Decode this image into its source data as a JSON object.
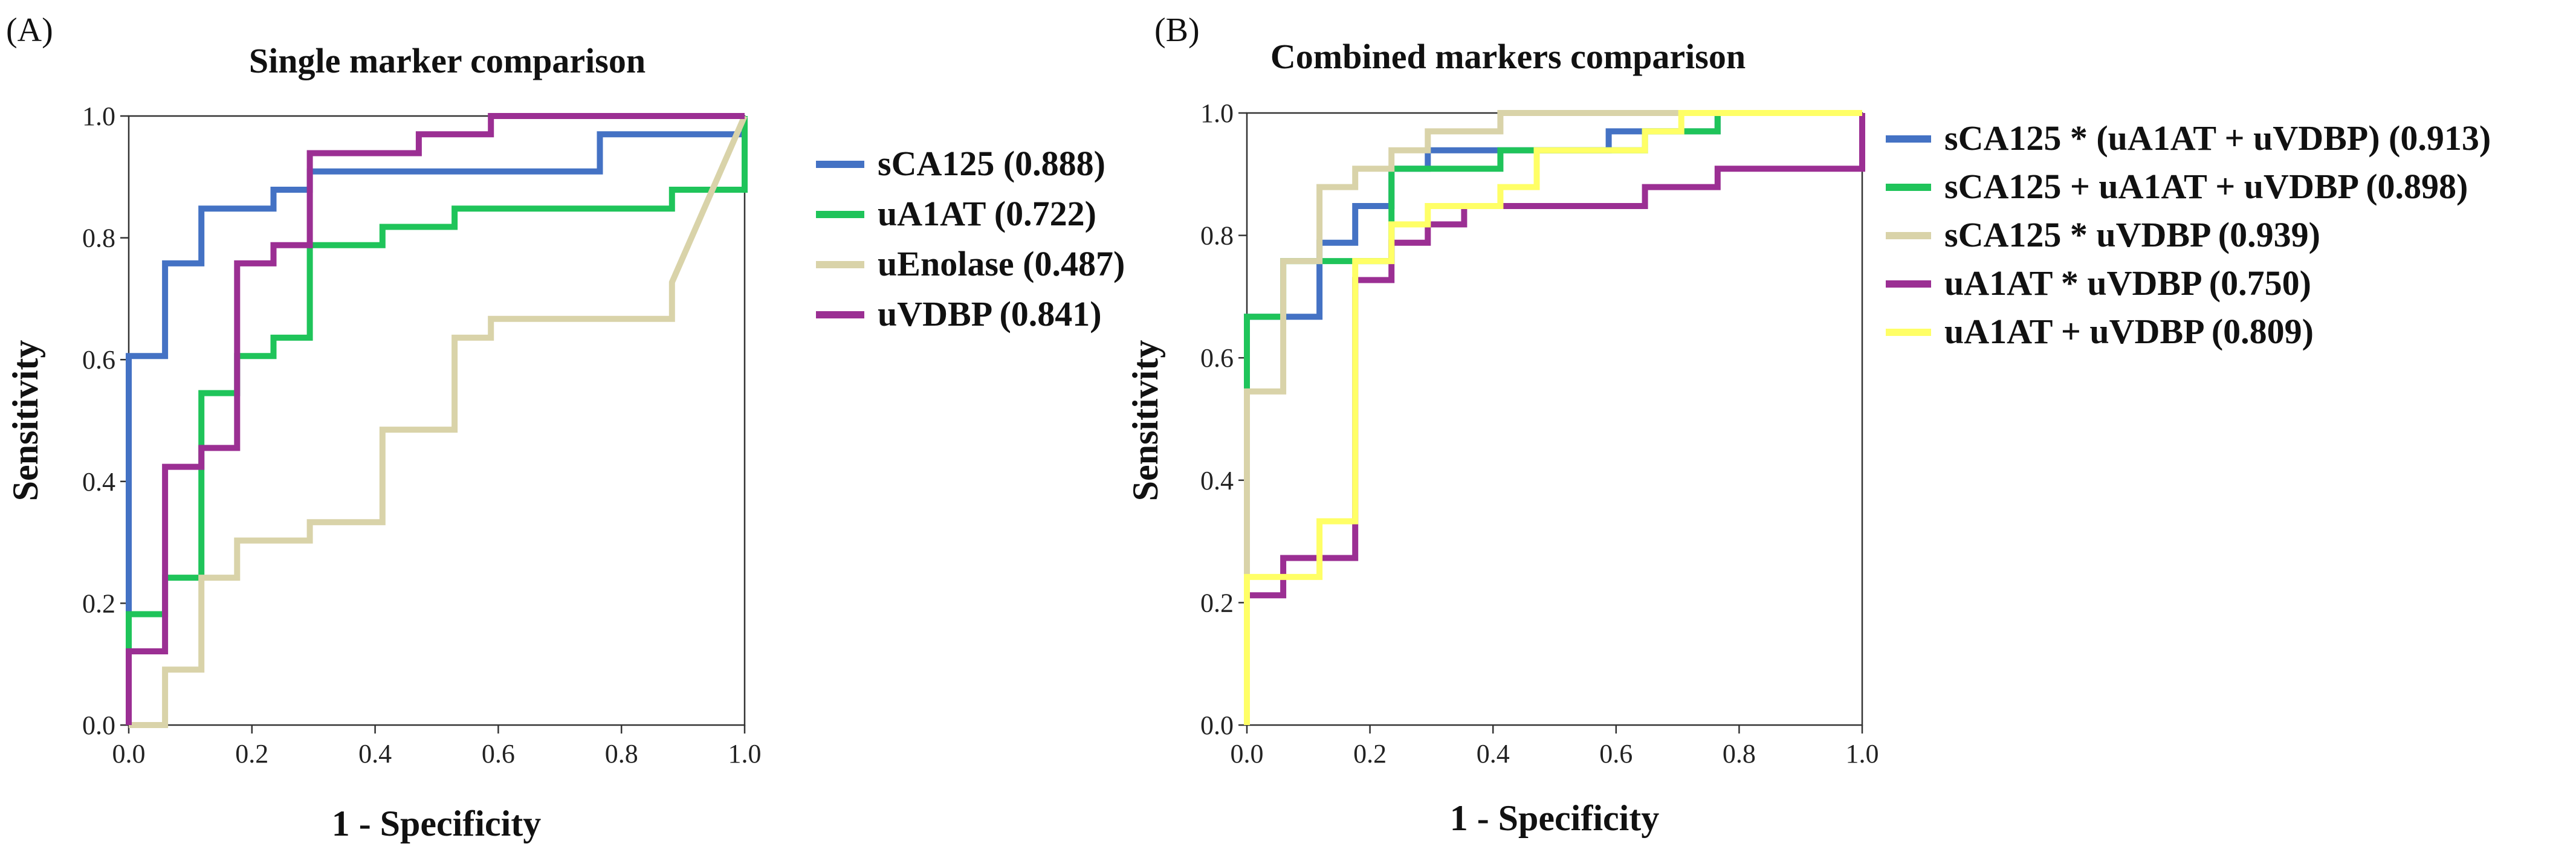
{
  "chart_data": [
    {
      "type": "line",
      "panel_label": "(A)",
      "title": "Single marker comparison",
      "xlabel": "1 - Specificity",
      "ylabel": "Sensitivity",
      "xlim": [
        0,
        1
      ],
      "ylim": [
        0,
        1
      ],
      "x_ticks": [
        "0.0",
        "0.2",
        "0.4",
        "0.6",
        "0.8",
        "1.0"
      ],
      "y_ticks": [
        "0.0",
        "0.2",
        "0.4",
        "0.6",
        "0.8",
        "1.0"
      ],
      "legend_position": "right",
      "series": [
        {
          "name": "sCA125",
          "auc": "0.888",
          "label": "sCA125 (0.888)",
          "color": "#4472c4",
          "points": [
            [
              0,
              0
            ],
            [
              0,
              0.606
            ],
            [
              0.059,
              0.606
            ],
            [
              0.059,
              0.758
            ],
            [
              0.118,
              0.758
            ],
            [
              0.118,
              0.848
            ],
            [
              0.235,
              0.848
            ],
            [
              0.235,
              0.879
            ],
            [
              0.294,
              0.879
            ],
            [
              0.294,
              0.909
            ],
            [
              0.765,
              0.909
            ],
            [
              0.765,
              0.97
            ],
            [
              1,
              0.97
            ],
            [
              1,
              1
            ]
          ]
        },
        {
          "name": "uA1AT",
          "auc": "0.722",
          "label": "uA1AT (0.722)",
          "color": "#1fc45a",
          "points": [
            [
              0,
              0
            ],
            [
              0,
              0.182
            ],
            [
              0.059,
              0.182
            ],
            [
              0.059,
              0.242
            ],
            [
              0.118,
              0.242
            ],
            [
              0.118,
              0.545
            ],
            [
              0.176,
              0.545
            ],
            [
              0.176,
              0.606
            ],
            [
              0.235,
              0.606
            ],
            [
              0.235,
              0.636
            ],
            [
              0.294,
              0.636
            ],
            [
              0.294,
              0.788
            ],
            [
              0.412,
              0.788
            ],
            [
              0.412,
              0.818
            ],
            [
              0.529,
              0.818
            ],
            [
              0.529,
              0.848
            ],
            [
              0.882,
              0.848
            ],
            [
              0.882,
              0.879
            ],
            [
              1,
              0.879
            ],
            [
              1,
              1
            ]
          ]
        },
        {
          "name": "uEnolase",
          "auc": "0.487",
          "label": "uEnolase (0.487)",
          "color": "#d9d3a9",
          "points": [
            [
              0,
              0
            ],
            [
              0.059,
              0
            ],
            [
              0.059,
              0.091
            ],
            [
              0.118,
              0.091
            ],
            [
              0.118,
              0.242
            ],
            [
              0.176,
              0.242
            ],
            [
              0.176,
              0.303
            ],
            [
              0.294,
              0.303
            ],
            [
              0.294,
              0.333
            ],
            [
              0.412,
              0.333
            ],
            [
              0.412,
              0.485
            ],
            [
              0.529,
              0.485
            ],
            [
              0.529,
              0.636
            ],
            [
              0.588,
              0.636
            ],
            [
              0.588,
              0.667
            ],
            [
              0.882,
              0.667
            ],
            [
              0.882,
              0.727
            ],
            [
              1,
              1
            ]
          ]
        },
        {
          "name": "uVDBP",
          "auc": "0.841",
          "label": "uVDBP (0.841)",
          "color": "#9b2f93",
          "points": [
            [
              0,
              0
            ],
            [
              0,
              0.121
            ],
            [
              0.059,
              0.121
            ],
            [
              0.059,
              0.424
            ],
            [
              0.118,
              0.424
            ],
            [
              0.118,
              0.455
            ],
            [
              0.176,
              0.455
            ],
            [
              0.176,
              0.758
            ],
            [
              0.235,
              0.758
            ],
            [
              0.235,
              0.788
            ],
            [
              0.294,
              0.788
            ],
            [
              0.294,
              0.939
            ],
            [
              0.471,
              0.939
            ],
            [
              0.471,
              0.97
            ],
            [
              0.588,
              0.97
            ],
            [
              0.588,
              1
            ],
            [
              1,
              1
            ]
          ]
        }
      ]
    },
    {
      "type": "line",
      "panel_label": "(B)",
      "title": "Combined markers comparison",
      "xlabel": "1 - Specificity",
      "ylabel": "Sensitivity",
      "xlim": [
        0,
        1
      ],
      "ylim": [
        0,
        1
      ],
      "x_ticks": [
        "0.0",
        "0.2",
        "0.4",
        "0.6",
        "0.8",
        "1.0"
      ],
      "y_ticks": [
        "0.0",
        "0.2",
        "0.4",
        "0.6",
        "0.8",
        "1.0"
      ],
      "legend_position": "right",
      "series": [
        {
          "name": "sCA125 * (uA1AT + uVDBP)",
          "auc": "0.913",
          "label": "sCA125 * (uA1AT + uVDBP) (0.913)",
          "color": "#4472c4",
          "points": [
            [
              0,
              0
            ],
            [
              0,
              0.667
            ],
            [
              0.118,
              0.667
            ],
            [
              0.118,
              0.788
            ],
            [
              0.176,
              0.788
            ],
            [
              0.176,
              0.848
            ],
            [
              0.235,
              0.848
            ],
            [
              0.235,
              0.909
            ],
            [
              0.294,
              0.909
            ],
            [
              0.294,
              0.939
            ],
            [
              0.588,
              0.939
            ],
            [
              0.588,
              0.97
            ],
            [
              0.765,
              0.97
            ],
            [
              0.765,
              1
            ],
            [
              1,
              1
            ]
          ]
        },
        {
          "name": "sCA125 + uA1AT + uVDBP",
          "auc": "0.898",
          "label": "sCA125 + uA1AT + uVDBP (0.898)",
          "color": "#1fc45a",
          "points": [
            [
              0,
              0
            ],
            [
              0,
              0.667
            ],
            [
              0.059,
              0.667
            ],
            [
              0.059,
              0.758
            ],
            [
              0.235,
              0.758
            ],
            [
              0.235,
              0.909
            ],
            [
              0.412,
              0.909
            ],
            [
              0.412,
              0.939
            ],
            [
              0.647,
              0.939
            ],
            [
              0.647,
              0.97
            ],
            [
              0.765,
              0.97
            ],
            [
              0.765,
              1
            ],
            [
              1,
              1
            ]
          ]
        },
        {
          "name": "sCA125 * uVDBP",
          "auc": "0.939",
          "label": "sCA125 * uVDBP (0.939)",
          "color": "#d9d3a9",
          "points": [
            [
              0,
              0
            ],
            [
              0,
              0.545
            ],
            [
              0.059,
              0.545
            ],
            [
              0.059,
              0.758
            ],
            [
              0.118,
              0.758
            ],
            [
              0.118,
              0.879
            ],
            [
              0.176,
              0.879
            ],
            [
              0.176,
              0.909
            ],
            [
              0.235,
              0.909
            ],
            [
              0.235,
              0.939
            ],
            [
              0.294,
              0.939
            ],
            [
              0.294,
              0.97
            ],
            [
              0.412,
              0.97
            ],
            [
              0.412,
              1
            ],
            [
              1,
              1
            ]
          ]
        },
        {
          "name": "uA1AT * uVDBP",
          "auc": "0.750",
          "label": "uA1AT * uVDBP (0.750)",
          "color": "#9b2f93",
          "points": [
            [
              0,
              0
            ],
            [
              0,
              0.212
            ],
            [
              0.059,
              0.212
            ],
            [
              0.059,
              0.273
            ],
            [
              0.176,
              0.273
            ],
            [
              0.176,
              0.727
            ],
            [
              0.235,
              0.727
            ],
            [
              0.235,
              0.788
            ],
            [
              0.294,
              0.788
            ],
            [
              0.294,
              0.818
            ],
            [
              0.353,
              0.818
            ],
            [
              0.353,
              0.848
            ],
            [
              0.647,
              0.848
            ],
            [
              0.647,
              0.879
            ],
            [
              0.765,
              0.879
            ],
            [
              0.765,
              0.909
            ],
            [
              1,
              0.909
            ],
            [
              1,
              1
            ]
          ]
        },
        {
          "name": "uA1AT + uVDBP",
          "auc": "0.809",
          "label": "uA1AT + uVDBP (0.809)",
          "color": "#ffff66",
          "points": [
            [
              0,
              0
            ],
            [
              0,
              0.242
            ],
            [
              0.118,
              0.242
            ],
            [
              0.118,
              0.333
            ],
            [
              0.176,
              0.333
            ],
            [
              0.176,
              0.758
            ],
            [
              0.235,
              0.758
            ],
            [
              0.235,
              0.818
            ],
            [
              0.294,
              0.818
            ],
            [
              0.294,
              0.848
            ],
            [
              0.412,
              0.848
            ],
            [
              0.412,
              0.879
            ],
            [
              0.471,
              0.879
            ],
            [
              0.471,
              0.939
            ],
            [
              0.647,
              0.939
            ],
            [
              0.647,
              0.97
            ],
            [
              0.706,
              0.97
            ],
            [
              0.706,
              1
            ],
            [
              1,
              1
            ]
          ]
        }
      ]
    }
  ]
}
